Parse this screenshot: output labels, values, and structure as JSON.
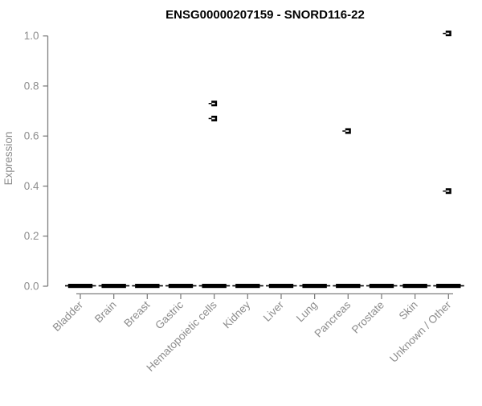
{
  "chart_data": {
    "type": "boxplot",
    "title": "ENSG00000207159 - SNORD116-22",
    "ylabel": "Expression",
    "xlabel": "",
    "ylim": [
      0,
      1
    ],
    "yticks": [
      0.0,
      0.2,
      0.4,
      0.6,
      0.8,
      1.0
    ],
    "grid": "off",
    "legend": "none",
    "categories": [
      "Bladder",
      "Brain",
      "Breast",
      "Gastric",
      "Hematopoietic cells",
      "Kidney",
      "Liver",
      "Lung",
      "Pancreas",
      "Prostate",
      "Skin",
      "Unknown / Other"
    ],
    "boxes": [
      {
        "category": "Bladder",
        "median": 0,
        "q1": 0,
        "q3": 0,
        "outliers": []
      },
      {
        "category": "Brain",
        "median": 0,
        "q1": 0,
        "q3": 0,
        "outliers": []
      },
      {
        "category": "Breast",
        "median": 0,
        "q1": 0,
        "q3": 0,
        "outliers": []
      },
      {
        "category": "Gastric",
        "median": 0,
        "q1": 0,
        "q3": 0,
        "outliers": []
      },
      {
        "category": "Hematopoietic cells",
        "median": 0,
        "q1": 0,
        "q3": 0,
        "outliers": [
          0.73,
          0.67
        ]
      },
      {
        "category": "Kidney",
        "median": 0,
        "q1": 0,
        "q3": 0,
        "outliers": []
      },
      {
        "category": "Liver",
        "median": 0,
        "q1": 0,
        "q3": 0,
        "outliers": []
      },
      {
        "category": "Lung",
        "median": 0,
        "q1": 0,
        "q3": 0,
        "outliers": []
      },
      {
        "category": "Pancreas",
        "median": 0,
        "q1": 0,
        "q3": 0,
        "outliers": [
          0.62
        ]
      },
      {
        "category": "Prostate",
        "median": 0,
        "q1": 0,
        "q3": 0,
        "outliers": []
      },
      {
        "category": "Skin",
        "median": 0,
        "q1": 0,
        "q3": 0,
        "outliers": []
      },
      {
        "category": "Unknown / Other",
        "median": 0,
        "q1": 0,
        "q3": 0,
        "outliers": [
          1.01,
          0.38
        ]
      }
    ],
    "colors": {
      "background": "#ffffff",
      "axis_line": "#808080",
      "tick_label": "#8c8c8c",
      "title": "#000000",
      "box": "#000000",
      "median_line_in_outlier_box": "#ffffff"
    }
  }
}
